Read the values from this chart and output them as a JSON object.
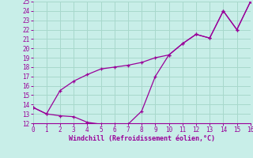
{
  "xlabel": "Windchill (Refroidissement éolien,°C)",
  "bg_color": "#c8eee8",
  "grid_color": "#a8d8cc",
  "line_color": "#990099",
  "line1_x": [
    0,
    1,
    2,
    3,
    4,
    5,
    6,
    7,
    8,
    9,
    10,
    11,
    12,
    13,
    14,
    15,
    16
  ],
  "line1_y": [
    13.7,
    13.0,
    12.8,
    12.7,
    12.1,
    11.9,
    11.9,
    11.9,
    13.3,
    17.0,
    19.3,
    20.5,
    21.5,
    21.1,
    24.0,
    22.0,
    25.0
  ],
  "line2_x": [
    0,
    1,
    2,
    3,
    4,
    5,
    6,
    7,
    8,
    9,
    10,
    11,
    12,
    13,
    14,
    15,
    16
  ],
  "line2_y": [
    13.7,
    13.0,
    15.5,
    16.5,
    17.2,
    17.8,
    18.0,
    18.2,
    18.5,
    19.0,
    19.3,
    20.5,
    21.5,
    21.1,
    24.0,
    22.0,
    25.0
  ],
  "ylim": [
    12,
    25
  ],
  "xlim": [
    0,
    16
  ],
  "yticks": [
    12,
    13,
    14,
    15,
    16,
    17,
    18,
    19,
    20,
    21,
    22,
    23,
    24,
    25
  ],
  "xticks": [
    0,
    1,
    2,
    3,
    4,
    5,
    6,
    7,
    8,
    9,
    10,
    11,
    12,
    13,
    14,
    15,
    16
  ],
  "marker_x1": [
    0,
    1,
    2,
    3,
    4,
    5,
    6,
    7,
    8,
    9,
    10,
    11,
    12,
    13,
    14,
    15,
    16
  ],
  "marker_x2": [
    0,
    8,
    9,
    10,
    11,
    12,
    13,
    14,
    15,
    16
  ]
}
